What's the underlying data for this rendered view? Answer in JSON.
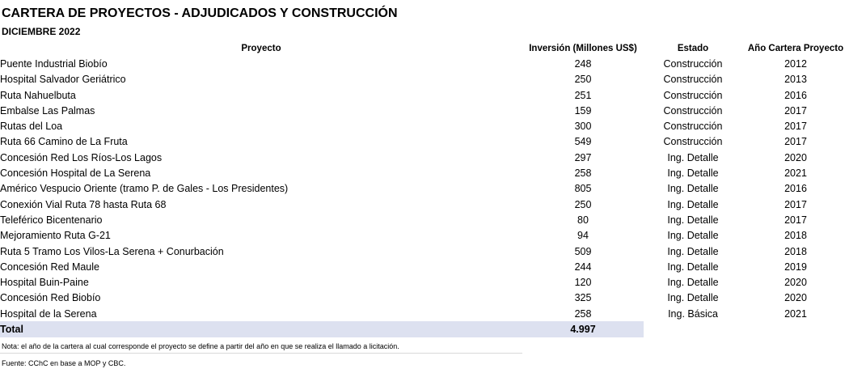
{
  "title": "CARTERA DE PROYECTOS - ADJUDICADOS Y CONSTRUCCIÓN",
  "subtitle": "DICIEMBRE 2022",
  "headers": {
    "project": "Proyecto",
    "investment": "Inversión (Millones  US$)",
    "status": "Estado",
    "year": "Año Cartera Proyecto"
  },
  "rows": [
    {
      "project": "Puente Industrial Biobío",
      "investment": "248",
      "status": "Construcción",
      "year": "2012"
    },
    {
      "project": "Hospital Salvador Geriátrico",
      "investment": "250",
      "status": "Construcción",
      "year": "2013"
    },
    {
      "project": "Ruta Nahuelbuta",
      "investment": "251",
      "status": "Construcción",
      "year": "2016"
    },
    {
      "project": "Embalse Las Palmas",
      "investment": "159",
      "status": "Construcción",
      "year": "2017"
    },
    {
      "project": "Rutas del Loa",
      "investment": "300",
      "status": "Construcción",
      "year": "2017"
    },
    {
      "project": "Ruta 66 Camino de La Fruta",
      "investment": "549",
      "status": "Construcción",
      "year": "2017"
    },
    {
      "project": "Concesión Red Los Ríos-Los Lagos",
      "investment": "297",
      "status": "Ing. Detalle",
      "year": "2020"
    },
    {
      "project": "Concesión Hospital de La Serena",
      "investment": "258",
      "status": "Ing. Detalle",
      "year": "2021"
    },
    {
      "project": "Américo Vespucio Oriente (tramo P. de Gales - Los Presidentes)",
      "investment": "805",
      "status": "Ing. Detalle",
      "year": "2016"
    },
    {
      "project": "Conexión Vial Ruta 78 hasta Ruta 68",
      "investment": "250",
      "status": "Ing. Detalle",
      "year": "2017"
    },
    {
      "project": "Teleférico Bicentenario",
      "investment": "80",
      "status": "Ing. Detalle",
      "year": "2017"
    },
    {
      "project": "Mejoramiento Ruta G-21",
      "investment": "94",
      "status": "Ing. Detalle",
      "year": "2018"
    },
    {
      "project": "Ruta 5 Tramo Los Vilos-La Serena + Conurbación",
      "investment": "509",
      "status": "Ing. Detalle",
      "year": "2018"
    },
    {
      "project": "Concesión Red Maule",
      "investment": "244",
      "status": "Ing. Detalle",
      "year": "2019"
    },
    {
      "project": "Hospital Buin-Paine",
      "investment": "120",
      "status": "Ing. Detalle",
      "year": "2020"
    },
    {
      "project": "Concesión Red Biobío",
      "investment": "325",
      "status": "Ing. Detalle",
      "year": "2020"
    },
    {
      "project": "Hospital de la Serena",
      "investment": "258",
      "status": "Ing. Básica",
      "year": "2021"
    }
  ],
  "total": {
    "label": "Total",
    "investment": "4.997"
  },
  "note": "Nota: el año de la cartera al cual corresponde el proyecto se define a partir del año en que se realiza el llamado a licitación.",
  "source": "Fuente: CChC en base a MOP y CBC."
}
